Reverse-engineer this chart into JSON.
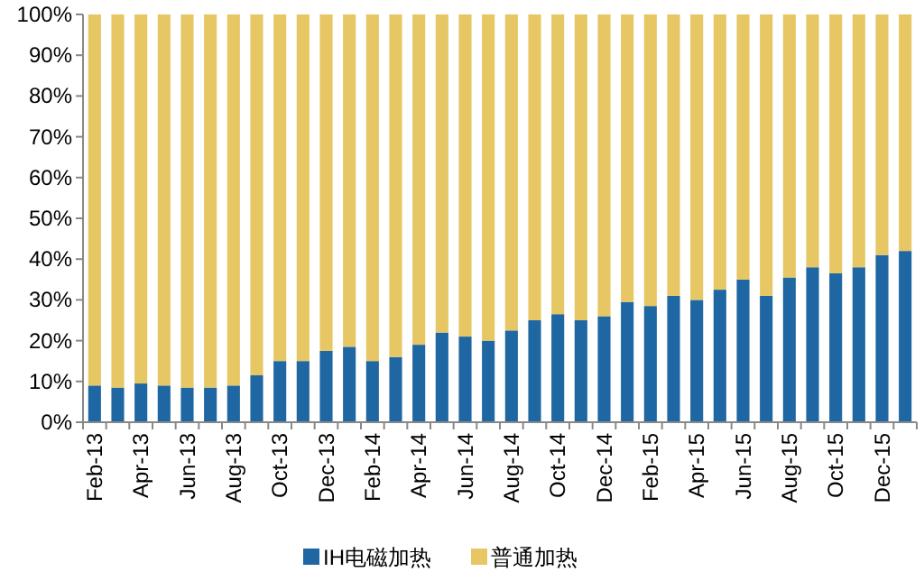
{
  "chart_data": {
    "type": "bar",
    "stacked": true,
    "legend": "bottom",
    "grid": false,
    "categories": [
      "Feb-13",
      null,
      "Apr-13",
      null,
      "Jun-13",
      null,
      "Aug-13",
      null,
      "Oct-13",
      null,
      "Dec-13",
      null,
      "Feb-14",
      null,
      "Apr-14",
      null,
      "Jun-14",
      null,
      "Aug-14",
      null,
      "Oct-14",
      null,
      "Dec-14",
      null,
      "Feb-15",
      null,
      "Apr-15",
      null,
      "Jun-15",
      null,
      "Aug-15",
      null,
      "Oct-15",
      null,
      "Dec-15",
      null
    ],
    "ylim": [
      0,
      100
    ],
    "yticks": [
      {
        "value": 0,
        "label": "0%"
      },
      {
        "value": 10,
        "label": "10%"
      },
      {
        "value": 20,
        "label": "20%"
      },
      {
        "value": 30,
        "label": "30%"
      },
      {
        "value": 40,
        "label": "40%"
      },
      {
        "value": 50,
        "label": "50%"
      },
      {
        "value": 60,
        "label": "60%"
      },
      {
        "value": 70,
        "label": "70%"
      },
      {
        "value": 80,
        "label": "80%"
      },
      {
        "value": 90,
        "label": "90%"
      },
      {
        "value": 100,
        "label": "100%"
      }
    ],
    "series": [
      {
        "name": "IH电磁加热",
        "color": "#1f67a3",
        "values": [
          9,
          8.5,
          9.5,
          9,
          8.5,
          8.5,
          9,
          11.5,
          15,
          15,
          17.5,
          18.5,
          15,
          16,
          19,
          22,
          21,
          20,
          22.5,
          25,
          26.5,
          25,
          26,
          29.5,
          28.5,
          31,
          30,
          32.5,
          35,
          31,
          35.5,
          38,
          36.5,
          38,
          41,
          42
        ]
      },
      {
        "name": "普通加热",
        "color": "#e6c764",
        "values": [
          91,
          91.5,
          90.5,
          91,
          91.5,
          91.5,
          91,
          88.5,
          85,
          85,
          82.5,
          81.5,
          85,
          84,
          81,
          78,
          79,
          80,
          77.5,
          75,
          73.5,
          75,
          74,
          70.5,
          71.5,
          69,
          70,
          67.5,
          65,
          69,
          64.5,
          62,
          63.5,
          62,
          59,
          58
        ]
      }
    ]
  }
}
